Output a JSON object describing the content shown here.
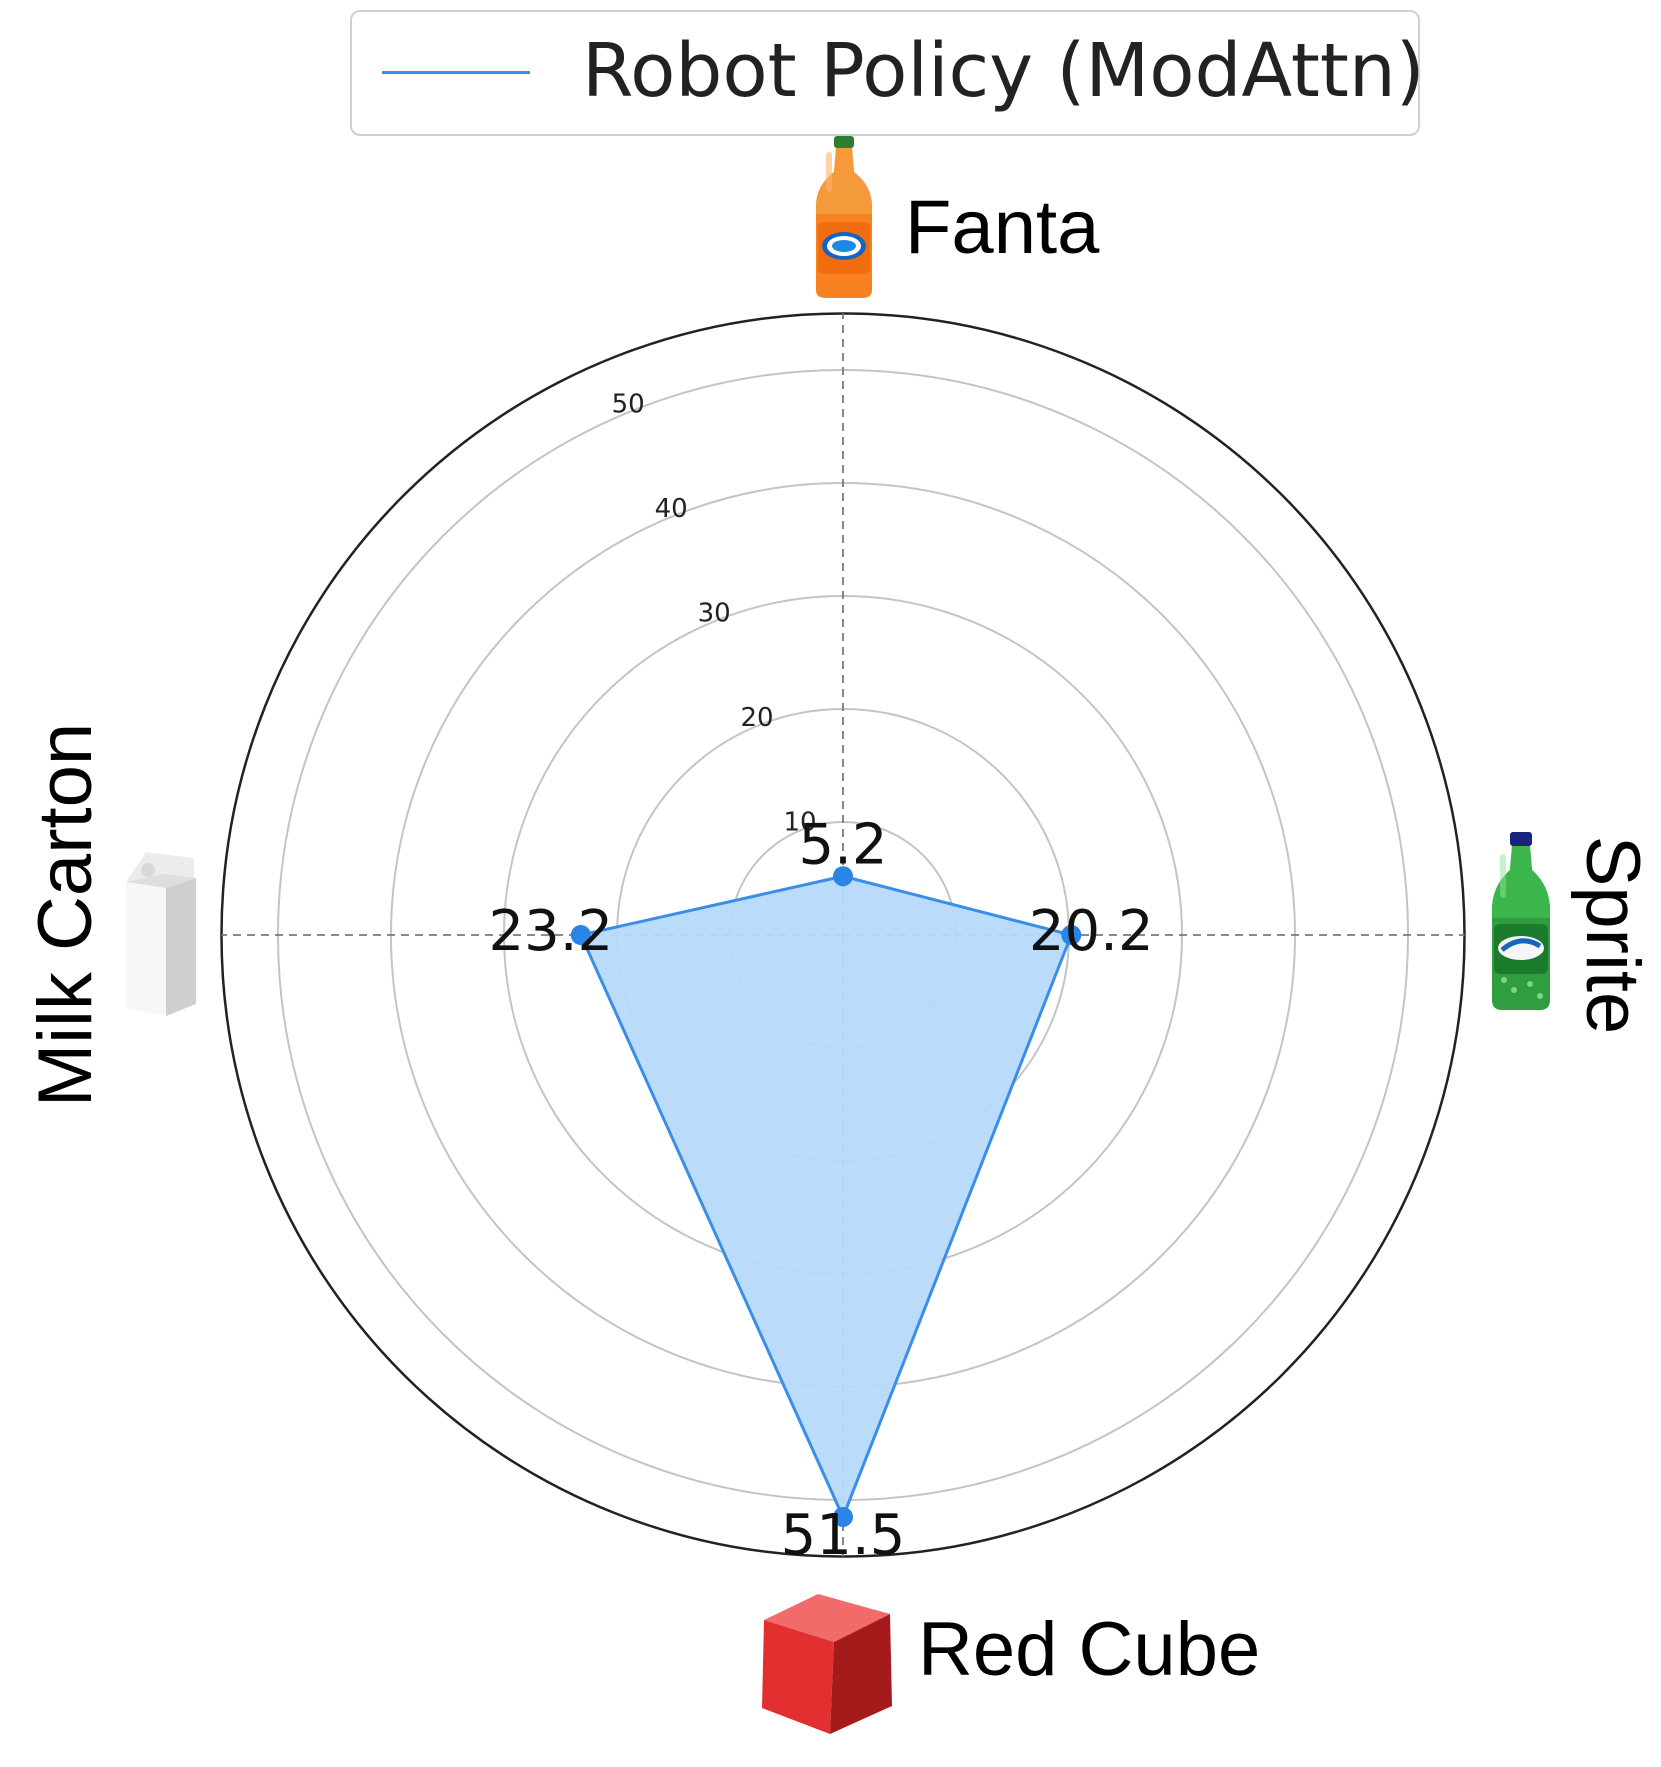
{
  "legend": {
    "label": "Robot Policy (ModAttn)"
  },
  "categories": {
    "top": "Fanta",
    "right": "Sprite",
    "bottom": "Red Cube",
    "left": "Milk Carton"
  },
  "icons": {
    "top": "orange-soda-bottle-icon",
    "right": "green-soda-bottle-icon",
    "bottom": "red-cube-icon",
    "left": "milk-carton-icon"
  },
  "chart_data": {
    "type": "radar",
    "categories": [
      "Fanta",
      "Sprite",
      "Red Cube",
      "Milk Carton"
    ],
    "series": [
      {
        "name": "Robot Policy (ModAttn)",
        "values": [
          5.2,
          20.2,
          51.5,
          23.2
        ]
      }
    ],
    "data_labels": [
      "5.2",
      "20.2",
      "51.5",
      "23.2"
    ],
    "r_ticks": [
      10,
      20,
      30,
      40,
      50
    ],
    "r_tick_labels": [
      "10",
      "20",
      "30",
      "40",
      "50"
    ],
    "rlim": [
      0,
      55
    ],
    "grid": true,
    "legend_position": "top-center",
    "colors": {
      "series_line": "#3a8ee6",
      "series_fill": "#b7d9fb",
      "marker": "#2a86e6",
      "grid": "#c4c4c4",
      "outer_ring": "#222222",
      "axis_dash": "#7a7a7a"
    }
  }
}
